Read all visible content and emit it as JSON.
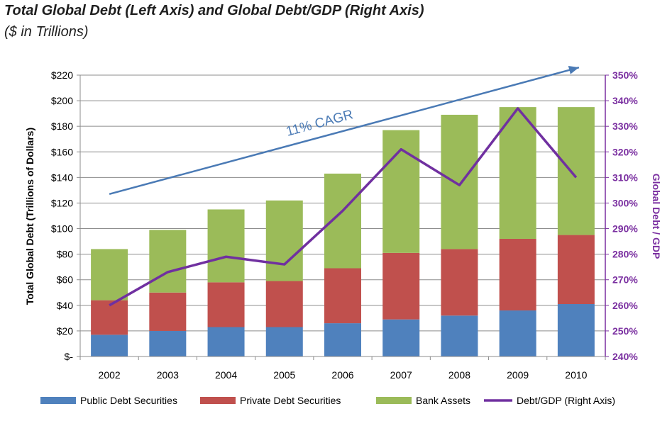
{
  "chart_data": {
    "type": "bar",
    "stacked": true,
    "title": "Total Global Debt (Left Axis) and Global Debt/GDP (Right Axis)",
    "subtitle": "($ in Trillions)",
    "ylabel": "Total Global Debt (Trillions of Dollars)",
    "y2label": "Global Debt / GDP",
    "categories": [
      "2002",
      "2003",
      "2004",
      "2005",
      "2006",
      "2007",
      "2008",
      "2009",
      "2010"
    ],
    "ylim": [
      0,
      220
    ],
    "y_ticks": [
      0,
      20,
      40,
      60,
      80,
      100,
      120,
      140,
      160,
      180,
      200,
      220
    ],
    "y_tick_labels": [
      "$-",
      "$20",
      "$40",
      "$60",
      "$80",
      "$100",
      "$120",
      "$140",
      "$160",
      "$180",
      "$200",
      "$220"
    ],
    "y2lim": [
      240,
      350
    ],
    "y2_ticks": [
      240,
      250,
      260,
      270,
      280,
      290,
      300,
      310,
      320,
      330,
      340,
      350
    ],
    "y2_tick_labels": [
      "240%",
      "250%",
      "260%",
      "270%",
      "280%",
      "290%",
      "300%",
      "310%",
      "320%",
      "330%",
      "340%",
      "350%"
    ],
    "series": [
      {
        "name": "Public Debt Securities",
        "color": "#4f81bd",
        "values": [
          17,
          20,
          23,
          23,
          26,
          29,
          32,
          36,
          41
        ]
      },
      {
        "name": "Private Debt Securities",
        "color": "#c0504d",
        "values": [
          27,
          30,
          35,
          36,
          43,
          52,
          52,
          56,
          54
        ]
      },
      {
        "name": "Bank Assets",
        "color": "#9bbb59",
        "values": [
          40,
          49,
          57,
          63,
          74,
          96,
          105,
          103,
          100
        ]
      }
    ],
    "line_series": {
      "name": "Debt/GDP (Right Axis)",
      "color": "#7030a0",
      "axis": "right",
      "values": [
        260,
        273,
        279,
        276,
        297,
        321,
        307,
        337,
        310
      ]
    },
    "annotation": {
      "text": "11% CAGR",
      "color": "#4a7ab5",
      "from": {
        "category": "2002",
        "y": 127
      },
      "to": {
        "category": "2010",
        "y": 226
      }
    },
    "grid": true,
    "legend_position": "bottom"
  }
}
